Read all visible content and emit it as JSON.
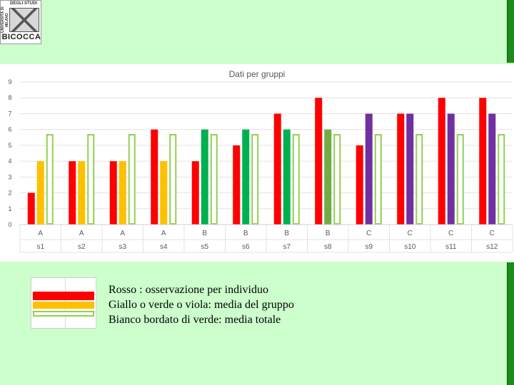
{
  "logo": {
    "top_text": "DEGLI STUDI",
    "side_text": "UNIVERSITÀ DI MILANO",
    "name": "BICOCCA"
  },
  "chart_data": {
    "type": "bar",
    "title": "Dati per gruppi",
    "ylim": [
      0,
      9
    ],
    "yticks": [
      0,
      1,
      2,
      3,
      4,
      5,
      6,
      7,
      8,
      9
    ],
    "grid": true,
    "categories": [
      "s1",
      "s2",
      "s3",
      "s4",
      "s5",
      "s6",
      "s7",
      "s8",
      "s9",
      "s10",
      "s11",
      "s12"
    ],
    "groups": [
      "A",
      "A",
      "A",
      "A",
      "B",
      "B",
      "B",
      "B",
      "C",
      "C",
      "C",
      "C"
    ],
    "series": [
      {
        "values": [
          2,
          4,
          4,
          6,
          4,
          5,
          7,
          8,
          5,
          7,
          8,
          8
        ],
        "colors": [
          "#ff0000",
          "#ff0000",
          "#ff0000",
          "#ff0000",
          "#ff0000",
          "#ff0000",
          "#ff0000",
          "#ff0000",
          "#ff0000",
          "#ff0000",
          "#ff0000",
          "#ff0000"
        ]
      },
      {
        "values": [
          4,
          4,
          4,
          4,
          6,
          6,
          6,
          6,
          7,
          7,
          7,
          7
        ],
        "colors": [
          "#ffc000",
          "#ffc000",
          "#ffc000",
          "#ffc000",
          "#00b050",
          "#00b050",
          "#00b050",
          "#70ad47",
          "#7030a0",
          "#7030a0",
          "#7030a0",
          "#7030a0"
        ]
      },
      {
        "values": [
          5.67,
          5.67,
          5.67,
          5.67,
          5.67,
          5.67,
          5.67,
          5.67,
          5.67,
          5.67,
          5.67,
          5.67
        ],
        "colors": [
          "#ffffff",
          "#ffffff",
          "#ffffff",
          "#ffffff",
          "#ffffff",
          "#ffffff",
          "#ffffff",
          "#ffffff",
          "#ffffff",
          "#ffffff",
          "#ffffff",
          "#ffffff"
        ],
        "border": "#92d050"
      }
    ]
  },
  "legend": {
    "lines": [
      "Rosso : osservazione per individuo",
      "Giallo o verde o viola: media del gruppo",
      "Bianco bordato di verde: media totale"
    ],
    "swatch_colors": [
      "#ff0000",
      "#ffc000",
      "#92d050"
    ]
  }
}
